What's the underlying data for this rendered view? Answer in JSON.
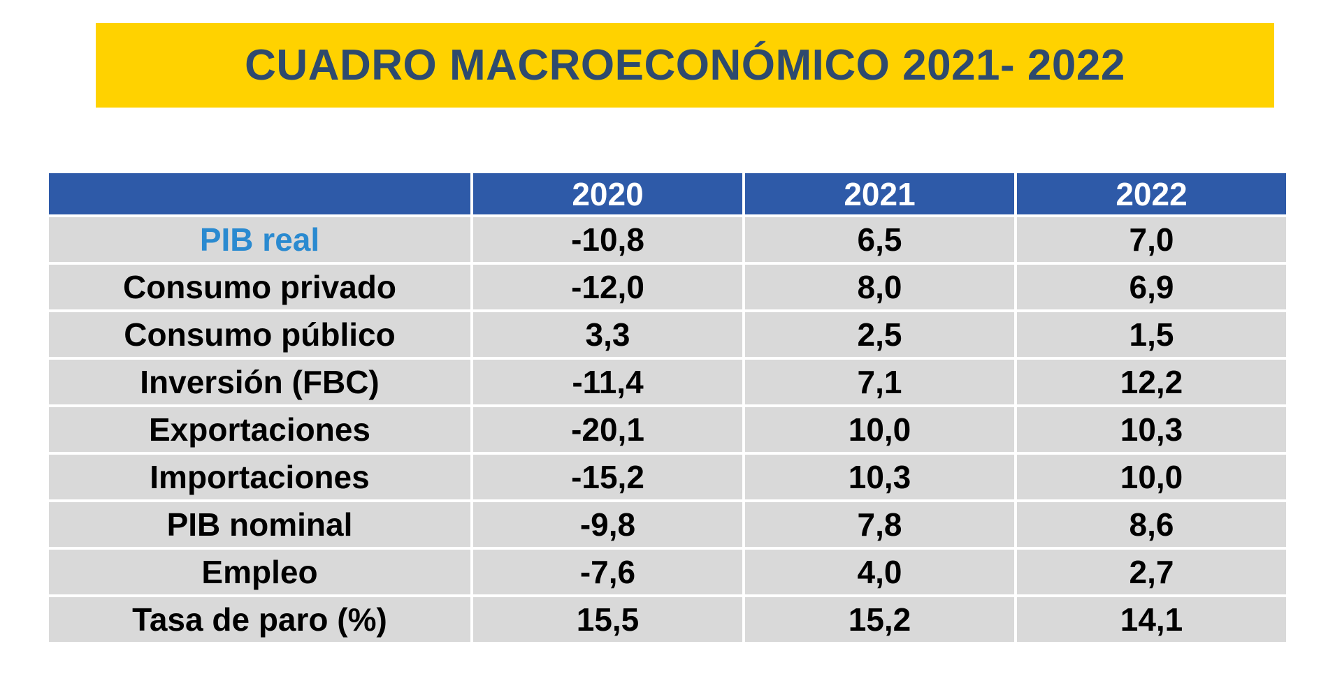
{
  "title": "CUADRO MACROECONÓMICO 2021- 2022",
  "colors": {
    "banner": "#FFD200",
    "title_text": "#2E4A6E",
    "header_bg": "#2E5AA8",
    "header_text": "#ffffff",
    "cell_bg": "#D9D9D9",
    "highlight_label": "#2A8AD0"
  },
  "chart_data": {
    "type": "table",
    "title": "CUADRO MACROECONÓMICO 2021- 2022",
    "columns": [
      "",
      "2020",
      "2021",
      "2022"
    ],
    "rows": [
      {
        "label": "PIB real",
        "values": [
          "-10,8",
          "6,5",
          "7,0"
        ],
        "highlight": true
      },
      {
        "label": "Consumo privado",
        "values": [
          "-12,0",
          "8,0",
          "6,9"
        ]
      },
      {
        "label": "Consumo público",
        "values": [
          "3,3",
          "2,5",
          "1,5"
        ]
      },
      {
        "label": "Inversión (FBC)",
        "values": [
          "-11,4",
          "7,1",
          "12,2"
        ]
      },
      {
        "label": "Exportaciones",
        "values": [
          "-20,1",
          "10,0",
          "10,3"
        ]
      },
      {
        "label": "Importaciones",
        "values": [
          "-15,2",
          "10,3",
          "10,0"
        ]
      },
      {
        "label": "PIB nominal",
        "values": [
          "-9,8",
          "7,8",
          "8,6"
        ]
      },
      {
        "label": "Empleo",
        "values": [
          "-7,6",
          "4,0",
          "2,7"
        ]
      },
      {
        "label": "Tasa de paro (%)",
        "values": [
          "15,5",
          "15,2",
          "14,1"
        ]
      }
    ]
  }
}
